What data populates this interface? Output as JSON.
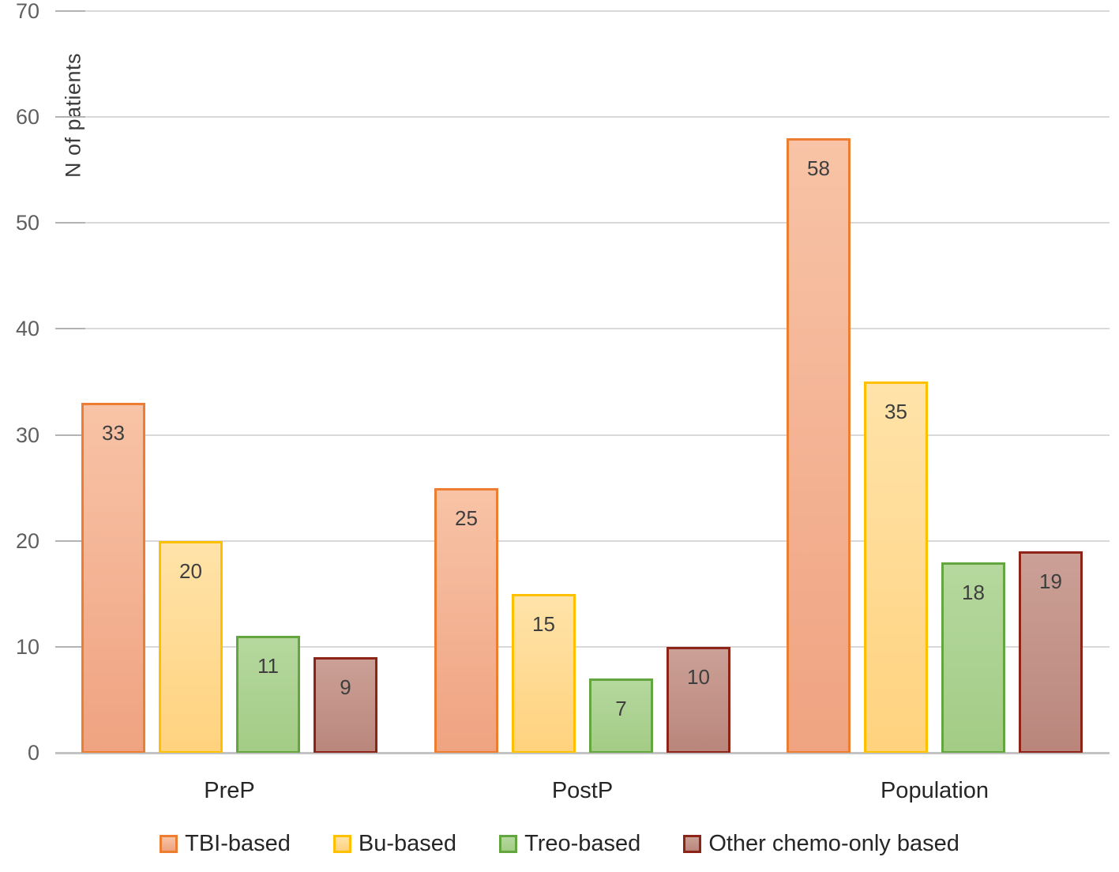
{
  "chart_data": {
    "type": "bar",
    "title": "",
    "xlabel": "",
    "ylabel": "N of patients",
    "ylim": [
      0,
      70
    ],
    "yticks": [
      0,
      10,
      20,
      30,
      40,
      50,
      60,
      70
    ],
    "grid": "horizontal",
    "legend_position": "bottom",
    "categories": [
      "PreP",
      "PostP",
      "Population"
    ],
    "series": [
      {
        "name": "TBI-based",
        "values": [
          33,
          25,
          58
        ],
        "fill_top": "#f8c3a6",
        "fill_bottom": "#efa381",
        "border": "#ed7d31"
      },
      {
        "name": "Bu-based",
        "values": [
          20,
          15,
          35
        ],
        "fill_top": "#ffe3a9",
        "fill_bottom": "#ffd27e",
        "border": "#ffc000"
      },
      {
        "name": "Treo-based",
        "values": [
          11,
          7,
          18
        ],
        "fill_top": "#b5d89e",
        "fill_bottom": "#a3cc85",
        "border": "#63a53e"
      },
      {
        "name": "Other chemo-only based",
        "values": [
          9,
          10,
          19
        ],
        "fill_top": "#cba096",
        "fill_bottom": "#ba867c",
        "border": "#8e2418"
      }
    ],
    "colors": {
      "gridline": "#d9d9d9",
      "axis_line": "#c3c3c3",
      "tick_label": "#5f5f5f",
      "value_label": "#3e3e3e",
      "category_label": "#262626",
      "legend_label": "#262626"
    }
  }
}
